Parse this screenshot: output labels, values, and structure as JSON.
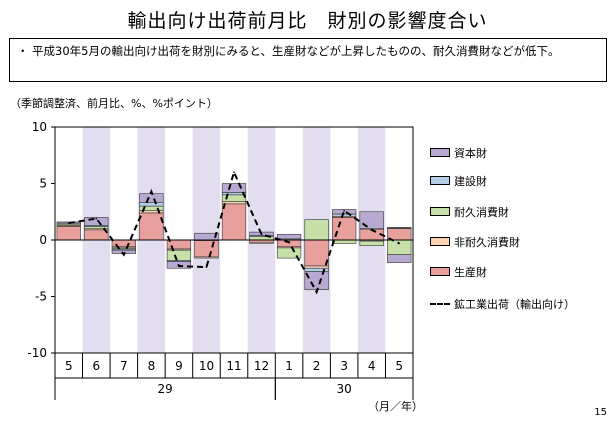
{
  "title": "輸出向け出荷前月比　財別の影響度合い",
  "note": {
    "bullet": "・",
    "text": "平成30年5月の輸出向け出荷を財別にみると、生産財などが上昇したものの、耐久消費財などが低下。"
  },
  "unit_label": "（季節調整済、前月比、%、%ポイント）",
  "page_number": "15",
  "chart_data": {
    "type": "bar",
    "stacked": true,
    "categories": [
      "5",
      "6",
      "7",
      "8",
      "9",
      "10",
      "11",
      "12",
      "1",
      "2",
      "3",
      "4",
      "5"
    ],
    "year_labels": [
      {
        "label": "29",
        "from_index": 0,
        "to_index": 7
      },
      {
        "label": "30",
        "from_index": 8,
        "to_index": 12
      }
    ],
    "x_unit": "（月／年）",
    "ylim": [
      -10,
      10
    ],
    "yticks": [
      -10,
      -5,
      0,
      5,
      10
    ],
    "shaded_categories": [
      1,
      3,
      5,
      7,
      9,
      11
    ],
    "series": [
      {
        "name": "生産財",
        "color": "#e8a09d",
        "values": [
          1.2,
          0.9,
          -0.6,
          2.4,
          -0.8,
          -1.5,
          3.2,
          -0.2,
          -0.6,
          -2.3,
          2.0,
          1.0,
          1.0
        ]
      },
      {
        "name": "非耐久消費財",
        "color": "#fbd3b3",
        "values": [
          0.1,
          0.1,
          -0.1,
          0.2,
          -0.1,
          -0.1,
          0.2,
          -0.1,
          -0.1,
          -0.2,
          0.1,
          -0.1,
          0.1
        ]
      },
      {
        "name": "耐久消費財",
        "color": "#c6e0a8",
        "values": [
          0.1,
          0.2,
          -0.1,
          0.4,
          -0.9,
          0.0,
          0.6,
          0.3,
          -0.9,
          1.8,
          -0.3,
          -0.4,
          -1.3
        ]
      },
      {
        "name": "建設財",
        "color": "#b4cfe9",
        "values": [
          0.1,
          0.1,
          -0.1,
          0.3,
          -0.1,
          0.0,
          0.2,
          0.1,
          0.1,
          -0.3,
          0.2,
          0.0,
          0.0
        ]
      },
      {
        "name": "資本財",
        "color": "#b8a9d2",
        "values": [
          0.1,
          0.7,
          -0.3,
          0.8,
          -0.6,
          0.6,
          0.8,
          0.3,
          0.4,
          -1.6,
          0.4,
          1.5,
          -0.7
        ]
      }
    ],
    "line_series": {
      "name": "鉱工業出荷（輸出向け）",
      "style": "dashed",
      "color": "#000000",
      "values": [
        1.5,
        1.9,
        -1.3,
        4.3,
        -2.3,
        -2.4,
        6.0,
        0.5,
        -0.2,
        -4.6,
        2.6,
        0.9,
        -0.3
      ]
    },
    "legend_position": "right",
    "legend_order": [
      "資本財",
      "建設財",
      "耐久消費財",
      "非耐久消費財",
      "生産財",
      "鉱工業出荷（輸出向け）"
    ]
  }
}
